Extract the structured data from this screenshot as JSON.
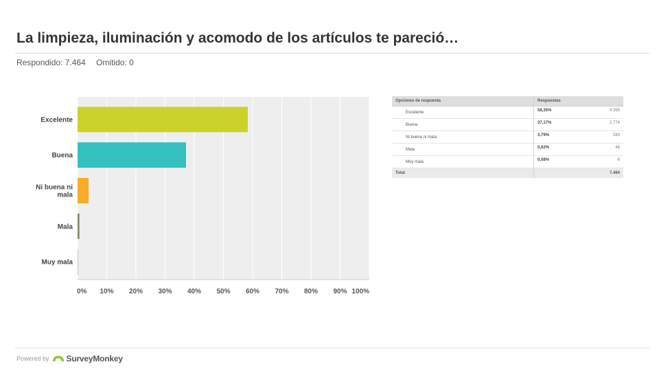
{
  "header": {
    "title": "La limpieza, iluminación y acomodo de los artículos te pareció…",
    "answered": "Respondido: 7.464",
    "skipped": "Omitido: 0"
  },
  "chart_data": {
    "type": "bar",
    "orientation": "horizontal",
    "categories": [
      "Excelente",
      "Buena",
      "Ni buena ni mala",
      "Mala",
      "Muy mala"
    ],
    "category_lines": [
      [
        "Excelente"
      ],
      [
        "Buena"
      ],
      [
        "Ni buena ni",
        "mala"
      ],
      [
        "Mala"
      ],
      [
        "Muy mala"
      ]
    ],
    "values": [
      58.35,
      37.17,
      3.79,
      0.62,
      0.08
    ],
    "colors": [
      "#cbd32b",
      "#35bfbf",
      "#f6ac26",
      "#85866b",
      "#a3a3a3"
    ],
    "xlim": [
      0,
      100
    ],
    "x_ticks": [
      "0%",
      "10%",
      "20%",
      "30%",
      "40%",
      "50%",
      "60%",
      "70%",
      "80%",
      "90%",
      "100%"
    ],
    "grid": true,
    "background": "#eeeeee"
  },
  "table": {
    "header": {
      "option": "Opciones de respuesta",
      "responses": "Respuestas"
    },
    "rows": [
      {
        "label": "Excelente",
        "percent": "58,35%",
        "count": "4.355"
      },
      {
        "label": "Buena",
        "percent": "37,17%",
        "count": "2.774"
      },
      {
        "label": "Ni buena ni mala",
        "percent": "3,79%",
        "count": "283"
      },
      {
        "label": "Mala",
        "percent": "0,62%",
        "count": "46"
      },
      {
        "label": "Muy mala",
        "percent": "0,08%",
        "count": "6"
      }
    ],
    "total_label": "Total",
    "total_value": "7.464"
  },
  "footer": {
    "powered_by": "Powered by",
    "brand": "SurveyMonkey",
    "logo_icon": "surveymonkey-logo-icon",
    "brand_color": "#8dc63f"
  }
}
